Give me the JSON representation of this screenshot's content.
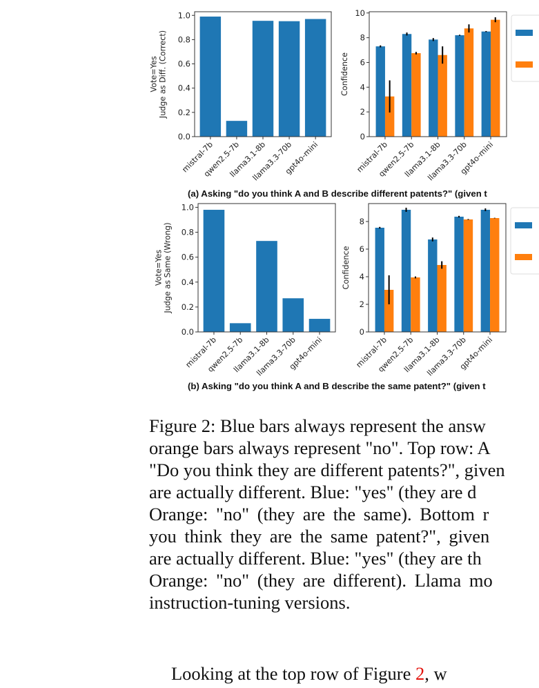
{
  "figure": {
    "subcaption_a": "(a) Asking \"do you think A and B describe different patents?\" (given t",
    "subcaption_b": "(b) Asking \"do you think A and B describe the same patent?\" (given t",
    "colors": {
      "blue": "#1f77b4",
      "orange": "#ff7f0e"
    }
  },
  "caption": {
    "lines": [
      "Figure 2: Blue bars always represent the answ",
      "orange bars always represent \"no\". Top row: A",
      "\"Do you think they are different patents?\", given",
      "are actually different.  Blue: \"yes\" (they are d",
      "Orange:  \"no\"  (they are the same).  Bottom r",
      "you think they are the same patent?\", given",
      "are actually different. Blue: \"yes\" (they are th",
      "Orange:  \"no\"  (they are different).  Llama mo",
      "instruction-tuning versions."
    ]
  },
  "body": {
    "para_start": "Looking at the top row of Figure ",
    "ref": "2",
    "para_end": ", w"
  },
  "chart_data": [
    {
      "id": "a-left",
      "type": "bar",
      "categories": [
        "mistral-7b",
        "qwen2.5-7b",
        "llama3.1-8b",
        "llama3.3-70b",
        "gpt4o-mini"
      ],
      "values": [
        0.99,
        0.13,
        0.955,
        0.952,
        0.97
      ],
      "ylabel": "Vote=Yes\nJudge as Diff. (Correct)",
      "ylabel_lines": [
        "Vote=Yes",
        "Judge as Diff. (Correct)"
      ],
      "yticks": [
        "0.0",
        "0.2",
        "0.4",
        "0.6",
        "0.8",
        "1.0"
      ],
      "ylim": [
        0,
        1.03
      ],
      "title": "",
      "xlabel": ""
    },
    {
      "id": "a-right",
      "type": "bar",
      "categories": [
        "mistral-7b",
        "qwen2.5-7b",
        "llama3.1-8b",
        "llama3.3-70b",
        "gpt4o-mini"
      ],
      "series": [
        {
          "name": "yes",
          "color": "#1f77b4",
          "values": [
            7.3,
            8.3,
            7.85,
            8.2,
            8.5
          ],
          "err": [
            0.08,
            0.12,
            0.12,
            0.04,
            0.04
          ]
        },
        {
          "name": "no",
          "color": "#ff7f0e",
          "values": [
            3.25,
            6.75,
            6.6,
            8.75,
            9.45
          ],
          "err": [
            1.3,
            0.1,
            0.7,
            0.33,
            0.2
          ]
        }
      ],
      "ylabel": "Confidence",
      "yticks": [
        "0",
        "2",
        "4",
        "6",
        "8",
        "10"
      ],
      "ylim": [
        0,
        10.1
      ],
      "legend": {
        "entries": [
          "",
          ""
        ],
        "position": "right"
      }
    },
    {
      "id": "b-left",
      "type": "bar",
      "categories": [
        "mistral-7b",
        "qwen2.5-7b",
        "llama3.1-8b",
        "llama3.3-70b",
        "gpt4o-mini"
      ],
      "values": [
        0.98,
        0.07,
        0.73,
        0.27,
        0.105
      ],
      "ylabel": "Vote=Yes\nJudge as Same (Wrong)",
      "ylabel_lines": [
        "Vote=Yes",
        "Judge as Same (Wrong)"
      ],
      "yticks": [
        "0.0",
        "0.2",
        "0.4",
        "0.6",
        "0.8",
        "1.0"
      ],
      "ylim": [
        0,
        1.03
      ],
      "title": "",
      "xlabel": ""
    },
    {
      "id": "b-right",
      "type": "bar",
      "categories": [
        "mistral-7b",
        "qwen2.5-7b",
        "llama3.1-8b",
        "llama3.3-70b",
        "gpt4o-mini"
      ],
      "series": [
        {
          "name": "yes",
          "color": "#1f77b4",
          "values": [
            7.55,
            8.85,
            6.7,
            8.35,
            8.85
          ],
          "err": [
            0.06,
            0.15,
            0.14,
            0.06,
            0.1
          ]
        },
        {
          "name": "no",
          "color": "#ff7f0e",
          "values": [
            3.05,
            3.95,
            4.85,
            8.15,
            8.25
          ],
          "err": [
            1.05,
            0.07,
            0.27,
            0.03,
            0.02
          ]
        }
      ],
      "ylabel": "Confidence",
      "yticks": [
        "0",
        "2",
        "4",
        "6",
        "8"
      ],
      "ylim": [
        0,
        9.3
      ],
      "legend": {
        "entries": [
          "",
          ""
        ],
        "position": "right"
      }
    }
  ]
}
